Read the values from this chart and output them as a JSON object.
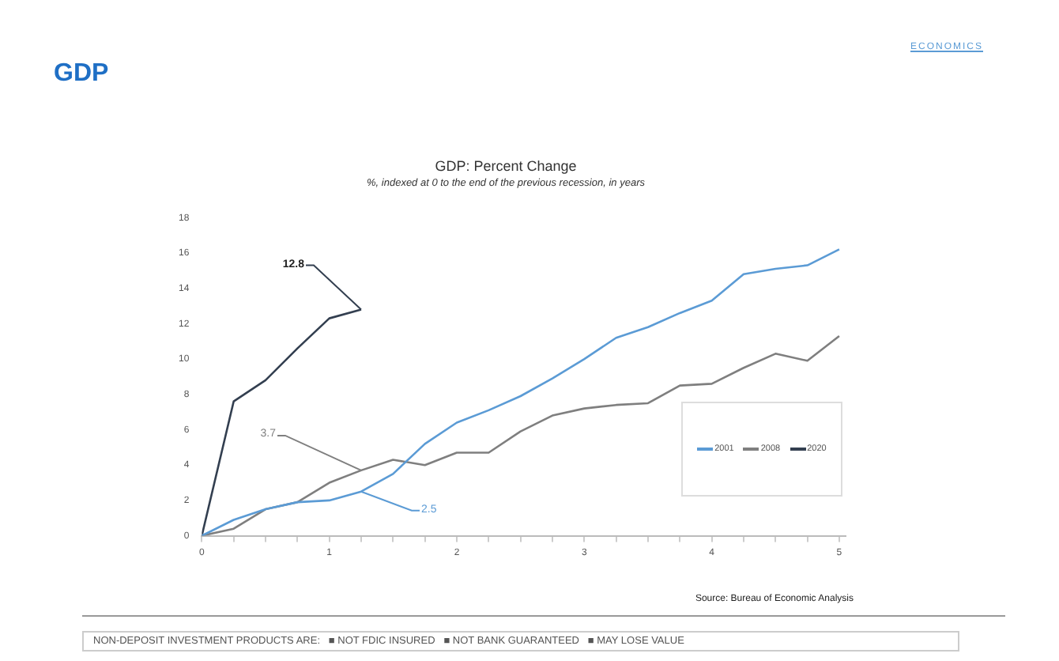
{
  "chart_data": {
    "type": "line",
    "title": "GDP: Percent Change",
    "subtitle": "%, indexed at 0 to the end of the previous recession, in years",
    "x": [
      0,
      0.25,
      0.5,
      0.75,
      1,
      1.25,
      1.5,
      1.75,
      2,
      2.25,
      2.5,
      2.75,
      3,
      3.25,
      3.5,
      3.75,
      4,
      4.25,
      4.5,
      4.75,
      5
    ],
    "series": [
      {
        "name": "2001",
        "color": "#5b9bd5",
        "values": [
          0,
          0.9,
          1.5,
          1.9,
          2.0,
          2.5,
          3.5,
          5.2,
          6.4,
          7.1,
          7.9,
          8.9,
          10.0,
          11.2,
          11.8,
          12.6,
          13.3,
          14.8,
          15.1,
          15.3,
          16.2
        ],
        "value_labels": [
          null,
          null,
          null,
          null,
          null,
          "2.5",
          null,
          null,
          null,
          null,
          null,
          null,
          null,
          null,
          null,
          null,
          null,
          null,
          null,
          null,
          null
        ]
      },
      {
        "name": "2008",
        "color": "#7f7f7f",
        "values": [
          0,
          0.4,
          1.5,
          1.9,
          3.0,
          3.7,
          4.3,
          4.0,
          4.7,
          4.7,
          5.9,
          6.8,
          7.2,
          7.4,
          7.5,
          8.5,
          8.6,
          9.5,
          10.3,
          9.9,
          11.3
        ],
        "value_labels": [
          null,
          null,
          null,
          null,
          null,
          "3.7",
          null,
          null,
          null,
          null,
          null,
          null,
          null,
          null,
          null,
          null,
          null,
          null,
          null,
          null,
          null
        ]
      },
      {
        "name": "2020",
        "color": "#333f50",
        "values": [
          0,
          7.6,
          8.8,
          10.6,
          12.3,
          12.8,
          null,
          null,
          null,
          null,
          null,
          null,
          null,
          null,
          null,
          null,
          null,
          null,
          null,
          null,
          null
        ],
        "value_labels": [
          null,
          null,
          null,
          null,
          null,
          "12.8",
          null,
          null,
          null,
          null,
          null,
          null,
          null,
          null,
          null,
          null,
          null,
          null,
          null,
          null,
          null
        ]
      }
    ],
    "xlim": [
      0,
      5.05
    ],
    "xticks": [
      0,
      {
        "value": 0.25,
        "label": null
      },
      {
        "value": 0.5,
        "label": null
      },
      {
        "value": 0.75,
        "label": null
      },
      1,
      {
        "value": 1.25,
        "label": null
      },
      {
        "value": 1.5,
        "label": null
      },
      {
        "value": 1.75,
        "label": null
      },
      2,
      {
        "value": 2.25,
        "label": null
      },
      {
        "value": 2.5,
        "label": null
      },
      {
        "value": 2.75,
        "label": null
      },
      3,
      {
        "value": 3.25,
        "label": null
      },
      {
        "value": 3.5,
        "label": null
      },
      {
        "value": 3.75,
        "label": null
      },
      4,
      {
        "value": 4.25,
        "label": null
      },
      {
        "value": 4.5,
        "label": null
      },
      {
        "value": 4.75,
        "label": null
      },
      5
    ],
    "ylim": [
      0,
      18
    ],
    "yticks": [
      0,
      2,
      4,
      6,
      8,
      10,
      12,
      14,
      16,
      18
    ],
    "grid": false,
    "legend": "bottom right",
    "marker": "none",
    "line_style": "solid",
    "annotations": [
      "ECONOMICS",
      "GDP",
      "Source: Bureau of Economic Analysis",
      "NON-DEPOSIT INVESTMENT PRODUCTS ARE:   ■ NOT FDIC INSURED   ■ NOT BANK GUARANTEED   ■ MAY LOSE VALUE"
    ]
  }
}
